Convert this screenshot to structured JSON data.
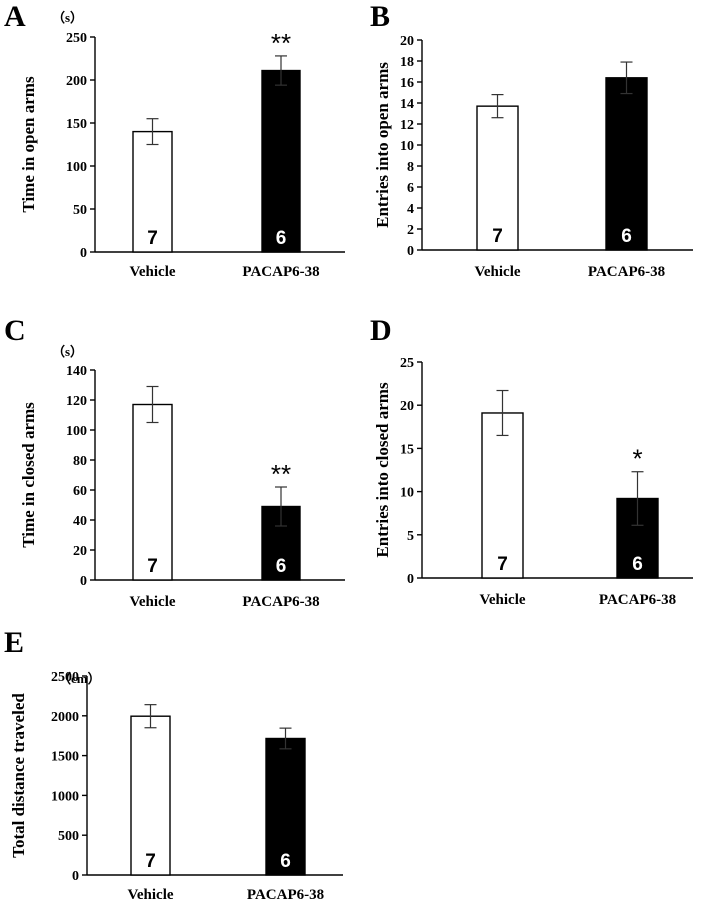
{
  "chart_data": [
    {
      "type": "bar",
      "panel": "A",
      "unit": "（s）",
      "ylabel": "Time in open arms",
      "categories": [
        "Vehicle",
        "PACAP6-38"
      ],
      "values": [
        140,
        211
      ],
      "errors": [
        15,
        17
      ],
      "n": [
        "7",
        "6"
      ],
      "significance": [
        "",
        "**"
      ],
      "ylim": [
        0,
        250
      ],
      "ticks": [
        "0",
        "50",
        "100",
        "150",
        "200",
        "250"
      ],
      "bar_colors": [
        "#ffffff",
        "#000000"
      ]
    },
    {
      "type": "bar",
      "panel": "B",
      "unit": "",
      "ylabel": "Entries into open arms",
      "categories": [
        "Vehicle",
        "PACAP6-38"
      ],
      "values": [
        13.7,
        16.4
      ],
      "errors": [
        1.1,
        1.5
      ],
      "n": [
        "7",
        "6"
      ],
      "significance": [
        "",
        ""
      ],
      "ylim": [
        0,
        20
      ],
      "ticks": [
        "0",
        "2",
        "4",
        "6",
        "8",
        "10",
        "12",
        "14",
        "16",
        "18",
        "20"
      ],
      "bar_colors": [
        "#ffffff",
        "#000000"
      ]
    },
    {
      "type": "bar",
      "panel": "C",
      "unit": "（s）",
      "ylabel": "Time in closed arms",
      "categories": [
        "Vehicle",
        "PACAP6-38"
      ],
      "values": [
        117,
        49
      ],
      "errors": [
        12,
        13
      ],
      "n": [
        "7",
        "6"
      ],
      "significance": [
        "",
        "**"
      ],
      "ylim": [
        0,
        140
      ],
      "ticks": [
        "0",
        "20",
        "40",
        "60",
        "80",
        "100",
        "120",
        "140"
      ],
      "bar_colors": [
        "#ffffff",
        "#000000"
      ]
    },
    {
      "type": "bar",
      "panel": "D",
      "unit": "",
      "ylabel": "Entries into closed arms",
      "categories": [
        "Vehicle",
        "PACAP6-38"
      ],
      "values": [
        19.1,
        9.2
      ],
      "errors": [
        2.6,
        3.1
      ],
      "n": [
        "7",
        "6"
      ],
      "significance": [
        "",
        "*"
      ],
      "ylim": [
        0,
        25
      ],
      "ticks": [
        "0",
        "5",
        "10",
        "15",
        "20",
        "25"
      ],
      "bar_colors": [
        "#ffffff",
        "#000000"
      ]
    },
    {
      "type": "bar",
      "panel": "E",
      "unit": "（cm）",
      "ylabel": "Total distance traveled",
      "categories": [
        "Vehicle",
        "PACAP6-38"
      ],
      "values": [
        1995,
        1715
      ],
      "errors": [
        145,
        130
      ],
      "n": [
        "7",
        "6"
      ],
      "significance": [
        "",
        ""
      ],
      "ylim": [
        0,
        2500
      ],
      "ticks": [
        "0",
        "500",
        "1000",
        "1500",
        "2000",
        "2500"
      ],
      "bar_colors": [
        "#ffffff",
        "#000000"
      ]
    }
  ]
}
